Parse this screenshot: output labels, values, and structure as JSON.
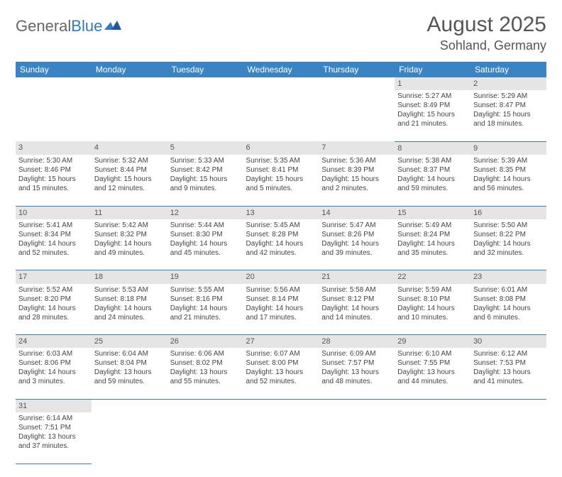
{
  "brand": {
    "part1": "General",
    "part2": "Blue"
  },
  "title": "August 2025",
  "location": "Sohland, Germany",
  "colors": {
    "header_bg": "#3b84c4",
    "header_text": "#ffffff",
    "daynum_bg": "#e5e5e5",
    "rule": "#3b7fb8",
    "text": "#444444",
    "brand_gray": "#666666",
    "brand_blue": "#2f7ac0"
  },
  "typography": {
    "title_fontsize": 30,
    "location_fontsize": 18,
    "header_fontsize": 12,
    "cell_fontsize": 10
  },
  "day_headers": [
    "Sunday",
    "Monday",
    "Tuesday",
    "Wednesday",
    "Thursday",
    "Friday",
    "Saturday"
  ],
  "weeks": [
    [
      null,
      null,
      null,
      null,
      null,
      {
        "n": "1",
        "sunrise": "Sunrise: 5:27 AM",
        "sunset": "Sunset: 8:49 PM",
        "day1": "Daylight: 15 hours",
        "day2": "and 21 minutes."
      },
      {
        "n": "2",
        "sunrise": "Sunrise: 5:29 AM",
        "sunset": "Sunset: 8:47 PM",
        "day1": "Daylight: 15 hours",
        "day2": "and 18 minutes."
      }
    ],
    [
      {
        "n": "3",
        "sunrise": "Sunrise: 5:30 AM",
        "sunset": "Sunset: 8:46 PM",
        "day1": "Daylight: 15 hours",
        "day2": "and 15 minutes."
      },
      {
        "n": "4",
        "sunrise": "Sunrise: 5:32 AM",
        "sunset": "Sunset: 8:44 PM",
        "day1": "Daylight: 15 hours",
        "day2": "and 12 minutes."
      },
      {
        "n": "5",
        "sunrise": "Sunrise: 5:33 AM",
        "sunset": "Sunset: 8:42 PM",
        "day1": "Daylight: 15 hours",
        "day2": "and 9 minutes."
      },
      {
        "n": "6",
        "sunrise": "Sunrise: 5:35 AM",
        "sunset": "Sunset: 8:41 PM",
        "day1": "Daylight: 15 hours",
        "day2": "and 5 minutes."
      },
      {
        "n": "7",
        "sunrise": "Sunrise: 5:36 AM",
        "sunset": "Sunset: 8:39 PM",
        "day1": "Daylight: 15 hours",
        "day2": "and 2 minutes."
      },
      {
        "n": "8",
        "sunrise": "Sunrise: 5:38 AM",
        "sunset": "Sunset: 8:37 PM",
        "day1": "Daylight: 14 hours",
        "day2": "and 59 minutes."
      },
      {
        "n": "9",
        "sunrise": "Sunrise: 5:39 AM",
        "sunset": "Sunset: 8:35 PM",
        "day1": "Daylight: 14 hours",
        "day2": "and 56 minutes."
      }
    ],
    [
      {
        "n": "10",
        "sunrise": "Sunrise: 5:41 AM",
        "sunset": "Sunset: 8:34 PM",
        "day1": "Daylight: 14 hours",
        "day2": "and 52 minutes."
      },
      {
        "n": "11",
        "sunrise": "Sunrise: 5:42 AM",
        "sunset": "Sunset: 8:32 PM",
        "day1": "Daylight: 14 hours",
        "day2": "and 49 minutes."
      },
      {
        "n": "12",
        "sunrise": "Sunrise: 5:44 AM",
        "sunset": "Sunset: 8:30 PM",
        "day1": "Daylight: 14 hours",
        "day2": "and 45 minutes."
      },
      {
        "n": "13",
        "sunrise": "Sunrise: 5:45 AM",
        "sunset": "Sunset: 8:28 PM",
        "day1": "Daylight: 14 hours",
        "day2": "and 42 minutes."
      },
      {
        "n": "14",
        "sunrise": "Sunrise: 5:47 AM",
        "sunset": "Sunset: 8:26 PM",
        "day1": "Daylight: 14 hours",
        "day2": "and 39 minutes."
      },
      {
        "n": "15",
        "sunrise": "Sunrise: 5:49 AM",
        "sunset": "Sunset: 8:24 PM",
        "day1": "Daylight: 14 hours",
        "day2": "and 35 minutes."
      },
      {
        "n": "16",
        "sunrise": "Sunrise: 5:50 AM",
        "sunset": "Sunset: 8:22 PM",
        "day1": "Daylight: 14 hours",
        "day2": "and 32 minutes."
      }
    ],
    [
      {
        "n": "17",
        "sunrise": "Sunrise: 5:52 AM",
        "sunset": "Sunset: 8:20 PM",
        "day1": "Daylight: 14 hours",
        "day2": "and 28 minutes."
      },
      {
        "n": "18",
        "sunrise": "Sunrise: 5:53 AM",
        "sunset": "Sunset: 8:18 PM",
        "day1": "Daylight: 14 hours",
        "day2": "and 24 minutes."
      },
      {
        "n": "19",
        "sunrise": "Sunrise: 5:55 AM",
        "sunset": "Sunset: 8:16 PM",
        "day1": "Daylight: 14 hours",
        "day2": "and 21 minutes."
      },
      {
        "n": "20",
        "sunrise": "Sunrise: 5:56 AM",
        "sunset": "Sunset: 8:14 PM",
        "day1": "Daylight: 14 hours",
        "day2": "and 17 minutes."
      },
      {
        "n": "21",
        "sunrise": "Sunrise: 5:58 AM",
        "sunset": "Sunset: 8:12 PM",
        "day1": "Daylight: 14 hours",
        "day2": "and 14 minutes."
      },
      {
        "n": "22",
        "sunrise": "Sunrise: 5:59 AM",
        "sunset": "Sunset: 8:10 PM",
        "day1": "Daylight: 14 hours",
        "day2": "and 10 minutes."
      },
      {
        "n": "23",
        "sunrise": "Sunrise: 6:01 AM",
        "sunset": "Sunset: 8:08 PM",
        "day1": "Daylight: 14 hours",
        "day2": "and 6 minutes."
      }
    ],
    [
      {
        "n": "24",
        "sunrise": "Sunrise: 6:03 AM",
        "sunset": "Sunset: 8:06 PM",
        "day1": "Daylight: 14 hours",
        "day2": "and 3 minutes."
      },
      {
        "n": "25",
        "sunrise": "Sunrise: 6:04 AM",
        "sunset": "Sunset: 8:04 PM",
        "day1": "Daylight: 13 hours",
        "day2": "and 59 minutes."
      },
      {
        "n": "26",
        "sunrise": "Sunrise: 6:06 AM",
        "sunset": "Sunset: 8:02 PM",
        "day1": "Daylight: 13 hours",
        "day2": "and 55 minutes."
      },
      {
        "n": "27",
        "sunrise": "Sunrise: 6:07 AM",
        "sunset": "Sunset: 8:00 PM",
        "day1": "Daylight: 13 hours",
        "day2": "and 52 minutes."
      },
      {
        "n": "28",
        "sunrise": "Sunrise: 6:09 AM",
        "sunset": "Sunset: 7:57 PM",
        "day1": "Daylight: 13 hours",
        "day2": "and 48 minutes."
      },
      {
        "n": "29",
        "sunrise": "Sunrise: 6:10 AM",
        "sunset": "Sunset: 7:55 PM",
        "day1": "Daylight: 13 hours",
        "day2": "and 44 minutes."
      },
      {
        "n": "30",
        "sunrise": "Sunrise: 6:12 AM",
        "sunset": "Sunset: 7:53 PM",
        "day1": "Daylight: 13 hours",
        "day2": "and 41 minutes."
      }
    ],
    [
      {
        "n": "31",
        "sunrise": "Sunrise: 6:14 AM",
        "sunset": "Sunset: 7:51 PM",
        "day1": "Daylight: 13 hours",
        "day2": "and 37 minutes."
      },
      null,
      null,
      null,
      null,
      null,
      null
    ]
  ]
}
